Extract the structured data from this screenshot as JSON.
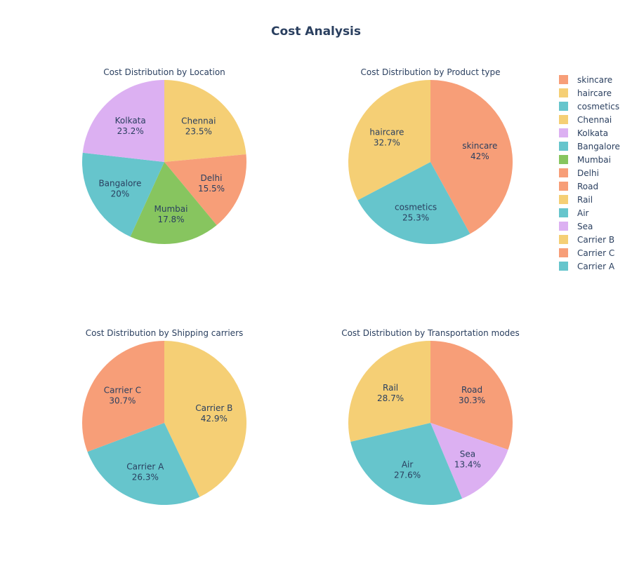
{
  "chart_data": {
    "type": "pie",
    "title": "Cost Analysis",
    "colors": {
      "skincare": "#F79E78",
      "haircare": "#F5CF75",
      "cosmetics": "#66C5CC",
      "Chennai": "#F5CF75",
      "Kolkata": "#DCB0F2",
      "Bangalore": "#66C5CC",
      "Mumbai": "#87C55F",
      "Delhi": "#F79E78",
      "Road": "#F79E78",
      "Rail": "#F5CF75",
      "Air": "#66C5CC",
      "Sea": "#DCB0F2",
      "Carrier B": "#F5CF75",
      "Carrier C": "#F79E78",
      "Carrier A": "#66C5CC"
    },
    "legend": {
      "placement": "top-right",
      "entries": [
        "skincare",
        "haircare",
        "cosmetics",
        "Chennai",
        "Kolkata",
        "Bangalore",
        "Mumbai",
        "Delhi",
        "Road",
        "Rail",
        "Air",
        "Sea",
        "Carrier B",
        "Carrier C",
        "Carrier A"
      ]
    },
    "pies": [
      {
        "title": "Cost Distribution by Location",
        "slices": [
          {
            "label": "Chennai",
            "percent": 23.5
          },
          {
            "label": "Delhi",
            "percent": 15.5
          },
          {
            "label": "Mumbai",
            "percent": 17.8
          },
          {
            "label": "Bangalore",
            "percent": 20.0
          },
          {
            "label": "Kolkata",
            "percent": 23.2
          }
        ],
        "percent_texts": [
          "23.5%",
          "15.5%",
          "17.8%",
          "20%",
          "23.2%"
        ]
      },
      {
        "title": "Cost Distribution by Product type",
        "slices": [
          {
            "label": "skincare",
            "percent": 42.0
          },
          {
            "label": "cosmetics",
            "percent": 25.3
          },
          {
            "label": "haircare",
            "percent": 32.7
          }
        ],
        "percent_texts": [
          "42%",
          "25.3%",
          "32.7%"
        ]
      },
      {
        "title": "Cost Distribution by Shipping carriers",
        "slices": [
          {
            "label": "Carrier B",
            "percent": 42.9
          },
          {
            "label": "Carrier A",
            "percent": 26.3
          },
          {
            "label": "Carrier C",
            "percent": 30.7
          }
        ],
        "percent_texts": [
          "42.9%",
          "26.3%",
          "30.7%"
        ]
      },
      {
        "title": "Cost Distribution by Transportation modes",
        "slices": [
          {
            "label": "Road",
            "percent": 30.3
          },
          {
            "label": "Sea",
            "percent": 13.4
          },
          {
            "label": "Air",
            "percent": 27.6
          },
          {
            "label": "Rail",
            "percent": 28.7
          }
        ],
        "percent_texts": [
          "30.3%",
          "13.4%",
          "27.6%",
          "28.7%"
        ]
      }
    ]
  }
}
